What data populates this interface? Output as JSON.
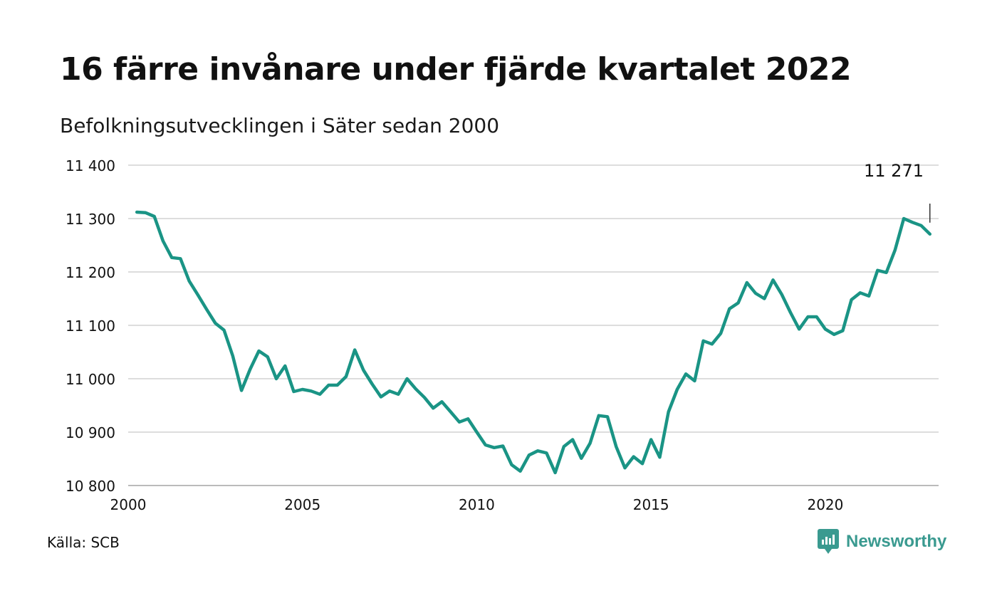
{
  "header": {
    "title": "16 färre invånare under fjärde kvartalet 2022",
    "subtitle": "Befolkningsutvecklingen i Säter sedan 2000"
  },
  "footer": {
    "source": "Källa: SCB",
    "brand": "Newsworthy"
  },
  "colors": {
    "line": "#1a9485",
    "grid": "#dddddd",
    "brand": "#3a9a90"
  },
  "icons": {
    "brand_logo": "newsworthy-logo-icon"
  },
  "chart_data": {
    "type": "line",
    "title": "16 färre invånare under fjärde kvartalet 2022",
    "subtitle": "Befolkningsutvecklingen i Säter sedan 2000",
    "xlabel": "",
    "ylabel": "",
    "xlim": [
      2000.0,
      2023.25
    ],
    "ylim": [
      10800,
      11400
    ],
    "x_ticks": [
      2000,
      2005,
      2010,
      2015,
      2020
    ],
    "x_tick_labels": [
      "2000",
      "2005",
      "2010",
      "2015",
      "2020"
    ],
    "y_ticks": [
      10800,
      10900,
      11000,
      11100,
      11200,
      11300,
      11400
    ],
    "y_tick_labels": [
      "10 800",
      "10 900",
      "11 000",
      "11 100",
      "11 200",
      "11 300",
      "11 400"
    ],
    "grid": true,
    "legend": "none",
    "end_label": {
      "value": 11271,
      "text": "11 271"
    },
    "series": [
      {
        "x": [
          2000.25,
          2000.5,
          2000.75,
          2001.0,
          2001.25,
          2001.5,
          2001.75,
          2002.0,
          2002.25,
          2002.5,
          2002.75,
          2003.0,
          2003.25,
          2003.5,
          2003.75,
          2004.0,
          2004.25,
          2004.5,
          2004.75,
          2005.0,
          2005.25,
          2005.5,
          2005.75,
          2006.0,
          2006.25,
          2006.5,
          2006.75,
          2007.0,
          2007.25,
          2007.5,
          2007.75,
          2008.0,
          2008.25,
          2008.5,
          2008.75,
          2009.0,
          2009.25,
          2009.5,
          2009.75,
          2010.0,
          2010.25,
          2010.5,
          2010.75,
          2011.0,
          2011.25,
          2011.5,
          2011.75,
          2012.0,
          2012.25,
          2012.5,
          2012.75,
          2013.0,
          2013.25,
          2013.5,
          2013.75,
          2014.0,
          2014.25,
          2014.5,
          2014.75,
          2015.0,
          2015.25,
          2015.5,
          2015.75,
          2016.0,
          2016.25,
          2016.5,
          2016.75,
          2017.0,
          2017.25,
          2017.5,
          2017.75,
          2018.0,
          2018.25,
          2018.5,
          2018.75,
          2019.0,
          2019.25,
          2019.5,
          2019.75,
          2020.0,
          2020.25,
          2020.5,
          2020.75,
          2021.0,
          2021.25,
          2021.5,
          2021.75,
          2022.0,
          2022.25,
          2022.5,
          2022.75,
          2023.0
        ],
        "values": [
          11312,
          11311,
          11304,
          11258,
          11227,
          11225,
          11183,
          11157,
          11130,
          11104,
          11091,
          11043,
          10978,
          11018,
          11052,
          11041,
          11000,
          11024,
          10976,
          10980,
          10977,
          10971,
          10988,
          10988,
          11004,
          11054,
          11016,
          10990,
          10966,
          10977,
          10971,
          11000,
          10981,
          10965,
          10945,
          10957,
          10938,
          10919,
          10925,
          10900,
          10876,
          10871,
          10874,
          10839,
          10827,
          10857,
          10865,
          10861,
          10824,
          10873,
          10886,
          10851,
          10879,
          10931,
          10929,
          10873,
          10833,
          10854,
          10841,
          10886,
          10853,
          10938,
          10980,
          11009,
          10996,
          11071,
          11065,
          11085,
          11131,
          11142,
          11180,
          11160,
          11150,
          11185,
          11158,
          11124,
          11093,
          11116,
          11116,
          11093,
          11083,
          11090,
          11148,
          11161,
          11155,
          11203,
          11199,
          11241,
          11300,
          11293,
          11287,
          11271
        ]
      }
    ]
  }
}
